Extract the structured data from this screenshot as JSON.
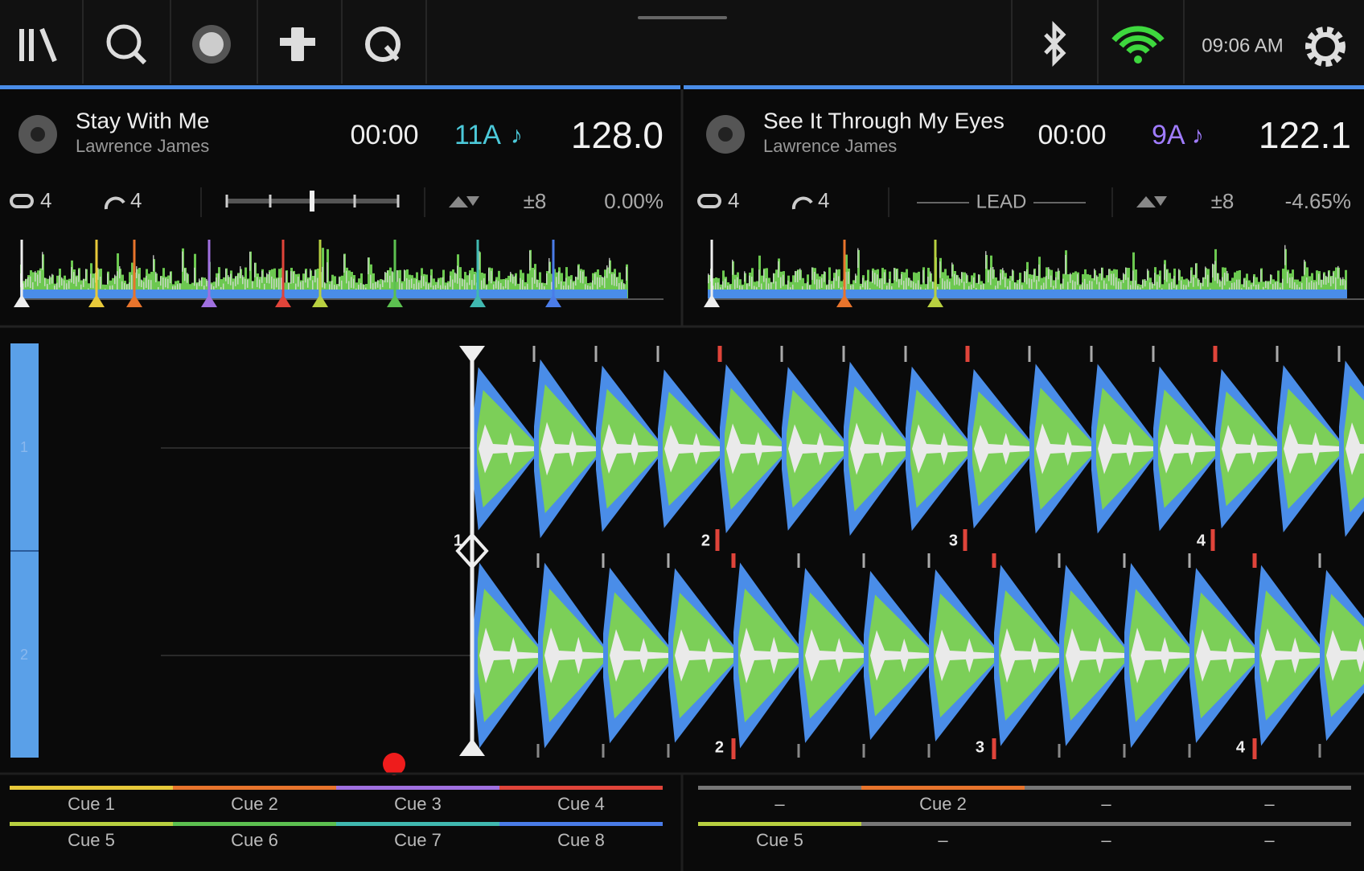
{
  "topbar": {
    "time": "09:06 AM"
  },
  "decks": [
    {
      "title": "Stay With Me",
      "artist": "Lawrence James",
      "time": "00:00",
      "key": "11A",
      "key_color": "#4cc9d9",
      "bpm": "128.0",
      "loop": "4",
      "jump": "4",
      "range": "±8",
      "pitch": "0.00%",
      "cues": [
        {
          "label": "Cue 1",
          "color": "#e8c93a"
        },
        {
          "label": "Cue 2",
          "color": "#e8742c"
        },
        {
          "label": "Cue 3",
          "color": "#a070e0"
        },
        {
          "label": "Cue 4",
          "color": "#e0443a"
        },
        {
          "label": "Cue 5",
          "color": "#b8d040"
        },
        {
          "label": "Cue 6",
          "color": "#5cc050"
        },
        {
          "label": "Cue 7",
          "color": "#40b8b0"
        },
        {
          "label": "Cue 8",
          "color": "#4a7ce8"
        }
      ]
    },
    {
      "title": "See It Through My Eyes",
      "artist": "Lawrence James",
      "time": "00:00",
      "key": "9A",
      "key_color": "#a07cff",
      "bpm": "122.1",
      "loop": "4",
      "jump": "4",
      "sync": "LEAD",
      "range": "±8",
      "pitch": "-4.65%",
      "cues": [
        {
          "label": "–",
          "color": "#777777"
        },
        {
          "label": "Cue 2",
          "color": "#e8742c"
        },
        {
          "label": "–",
          "color": "#777777"
        },
        {
          "label": "–",
          "color": "#777777"
        },
        {
          "label": "Cue 5",
          "color": "#b8d040"
        },
        {
          "label": "–",
          "color": "#777777"
        },
        {
          "label": "–",
          "color": "#777777"
        },
        {
          "label": "–",
          "color": "#777777"
        }
      ]
    }
  ],
  "lanes": [
    "1",
    "2"
  ],
  "beat_markers": {
    "top": [
      "1",
      "2",
      "3",
      "4"
    ],
    "bottom": [
      "2",
      "3",
      "4"
    ]
  }
}
